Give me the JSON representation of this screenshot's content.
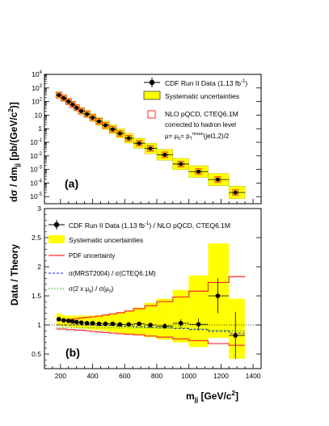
{
  "chart_data": [
    {
      "panel": "top",
      "type": "scatter",
      "panel_label": "(a)",
      "ylabel_main": "dσ / dm",
      "ylabel_sub": "jj",
      "ylabel_units": "[pb/(GeV/c",
      "ylabel_sup": "2",
      "ylabel_close": ")]",
      "y_scale": "log",
      "ylim": [
        3e-06,
        10000
      ],
      "xlim": [
        100,
        1450
      ],
      "y_ticks": [
        {
          "value": 10000,
          "exp": "4"
        },
        {
          "value": 1000,
          "exp": "3"
        },
        {
          "value": 100,
          "exp": "2"
        },
        {
          "value": 10,
          "exp": ""
        },
        {
          "value": 1,
          "exp": ""
        },
        {
          "value": 0.1,
          "exp": "-1"
        },
        {
          "value": 0.01,
          "exp": "-2"
        },
        {
          "value": 0.001,
          "exp": "-3"
        },
        {
          "value": 0.0001,
          "exp": "-4"
        },
        {
          "value": 1e-05,
          "exp": "-5"
        }
      ],
      "legend": {
        "data": "CDF Run II Data (1.13 fb",
        "data_sup": "-1",
        "data_close": ")",
        "syst": "Systematic uncertainties",
        "nlo": "NLO pQCD, CTEQ6.1M",
        "note1": "corrected to hadron level",
        "note2": "μ= μ",
        "note2_sub": "0",
        "note2_mid": "= p",
        "note2_sub2": "T",
        "note2_sup": "mean",
        "note2_end": "(jet1,2)/2"
      },
      "series": [
        {
          "name": "CDF Run II Data",
          "x": [
            190,
            220,
            250,
            275,
            300,
            330,
            365,
            400,
            440,
            480,
            525,
            570,
            625,
            690,
            760,
            850,
            950,
            1060,
            1180,
            1290
          ],
          "y": [
            300,
            180,
            100,
            60,
            35,
            20,
            12,
            6.5,
            3.5,
            1.8,
            0.9,
            0.45,
            0.2,
            0.085,
            0.035,
            0.012,
            0.0025,
            0.0007,
            0.00018,
            2e-05
          ]
        }
      ]
    },
    {
      "panel": "bottom",
      "type": "scatter",
      "panel_label": "(b)",
      "ylabel": "Data / Theory",
      "xlabel_main": "m",
      "xlabel_sub": "jj",
      "xlabel_units": "[GeV/c",
      "xlabel_sup": "2",
      "xlabel_close": "]",
      "ylim": [
        0.25,
        3.0
      ],
      "xlim": [
        100,
        1450
      ],
      "y_ticks": [
        "0.5",
        "1",
        "1.5",
        "2",
        "2.5",
        "3"
      ],
      "x_ticks": [
        "200",
        "400",
        "600",
        "800",
        "1000",
        "1200",
        "1400"
      ],
      "legend": {
        "data": "CDF Run II Data (1.13 fb",
        "data_sup": "-1",
        "data_close": ") / NLO pQCD, CTEQ6.1M",
        "syst": "Systematic uncertainties",
        "pdf": "PDF uncertainty",
        "mrst": "σ(MRST2004) / σ(CTEQ6.1M)",
        "scale_a": "σ(2 x μ",
        "scale_sub1": "0",
        "scale_b": ") / σ(μ",
        "scale_sub2": "0",
        "scale_c": ")"
      },
      "series": [
        {
          "name": "CDF Run II Data / NLO pQCD",
          "x": [
            190,
            220,
            250,
            275,
            300,
            330,
            365,
            400,
            440,
            480,
            525,
            570,
            625,
            690,
            760,
            850,
            950,
            1060,
            1180,
            1290
          ],
          "y": [
            1.1,
            1.08,
            1.07,
            1.06,
            1.05,
            1.04,
            1.03,
            1.03,
            1.02,
            1.02,
            1.02,
            1.01,
            1.01,
            1.02,
            1.0,
            0.98,
            1.03,
            1.01,
            1.5,
            0.82
          ],
          "yerr": [
            0.01,
            0.01,
            0.01,
            0.01,
            0.01,
            0.01,
            0.01,
            0.01,
            0.01,
            0.01,
            0.01,
            0.01,
            0.02,
            0.02,
            0.03,
            0.05,
            0.07,
            0.1,
            0.3,
            0.4
          ]
        }
      ],
      "bin_edges": [
        175,
        205,
        235,
        265,
        290,
        315,
        350,
        385,
        420,
        460,
        505,
        550,
        600,
        655,
        725,
        800,
        900,
        1000,
        1120,
        1250,
        1350
      ],
      "systematic_band": {
        "upper": [
          1.2,
          1.17,
          1.16,
          1.16,
          1.16,
          1.16,
          1.16,
          1.16,
          1.17,
          1.18,
          1.2,
          1.22,
          1.25,
          1.3,
          1.38,
          1.45,
          1.6,
          1.85,
          2.4,
          1.45
        ],
        "lower": [
          0.98,
          0.97,
          0.97,
          0.96,
          0.95,
          0.94,
          0.93,
          0.92,
          0.91,
          0.9,
          0.88,
          0.86,
          0.84,
          0.82,
          0.79,
          0.75,
          0.7,
          0.62,
          0.78,
          0.42
        ]
      },
      "pdf_band": {
        "upper": [
          1.08,
          1.08,
          1.09,
          1.1,
          1.11,
          1.12,
          1.13,
          1.14,
          1.15,
          1.17,
          1.19,
          1.21,
          1.24,
          1.28,
          1.33,
          1.4,
          1.48,
          1.58,
          1.73,
          1.83
        ],
        "lower": [
          0.93,
          0.93,
          0.92,
          0.92,
          0.91,
          0.91,
          0.9,
          0.89,
          0.88,
          0.87,
          0.86,
          0.85,
          0.84,
          0.83,
          0.81,
          0.79,
          0.76,
          0.73,
          0.68,
          0.65
        ]
      },
      "mrst_ratio": [
        1.0,
        1.0,
        1.0,
        1.0,
        1.0,
        1.0,
        1.0,
        1.0,
        0.99,
        0.99,
        0.99,
        0.98,
        0.98,
        0.97,
        0.96,
        0.95,
        0.94,
        0.92,
        0.89,
        0.86
      ],
      "scale_ratio": [
        0.95,
        0.95,
        0.95,
        0.95,
        0.95,
        0.95,
        0.95,
        0.95,
        0.95,
        0.95,
        0.95,
        0.95,
        0.95,
        0.95,
        0.95,
        0.95,
        0.95,
        0.93,
        0.91,
        0.9
      ],
      "reference_line": 1
    }
  ],
  "colors": {
    "systematic": "#ffff00",
    "pdf": "#ff2a2a",
    "mrst": "#1a1aff",
    "scale": "#1e9e1e",
    "nlo_marker": "#ff2a2a",
    "data": "#000000"
  }
}
